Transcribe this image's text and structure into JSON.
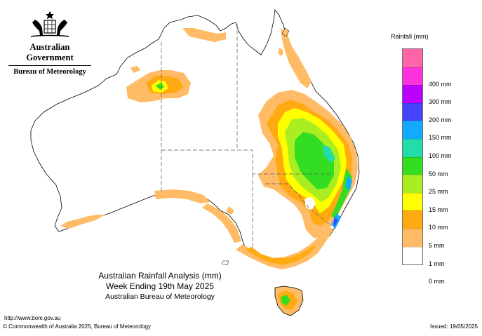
{
  "header": {
    "government": "Australian Government",
    "bureau": "Bureau of Meteorology"
  },
  "title": {
    "line1": "Australian Rainfall Analysis (mm)",
    "line2": "Week Ending 19th May 2025",
    "line3": "Australian Bureau of Meteorology"
  },
  "footer": {
    "url": "http://www.bom.gov.au",
    "copyright": "© Commonwealth of Australia 2025, Bureau of Meteorology",
    "issued": "Issued: 19/05/2025"
  },
  "legend": {
    "title": "Rainfall (mm)",
    "classes": [
      {
        "label": "",
        "color": "#ff66aa"
      },
      {
        "label": "400 mm",
        "color": "#ff33dd"
      },
      {
        "label": "300 mm",
        "color": "#bb00ff"
      },
      {
        "label": "200 mm",
        "color": "#4444ff"
      },
      {
        "label": "150 mm",
        "color": "#11aaff"
      },
      {
        "label": "100 mm",
        "color": "#22ddaa"
      },
      {
        "label": "50 mm",
        "color": "#33dd22"
      },
      {
        "label": "25 mm",
        "color": "#aaee22"
      },
      {
        "label": "15 mm",
        "color": "#ffff00"
      },
      {
        "label": "10 mm",
        "color": "#ffaa11"
      },
      {
        "label": "5 mm",
        "color": "#ffbb66"
      },
      {
        "label": "1 mm",
        "color": "#ffffff"
      },
      {
        "label": "0 mm",
        "color": ""
      }
    ]
  }
}
